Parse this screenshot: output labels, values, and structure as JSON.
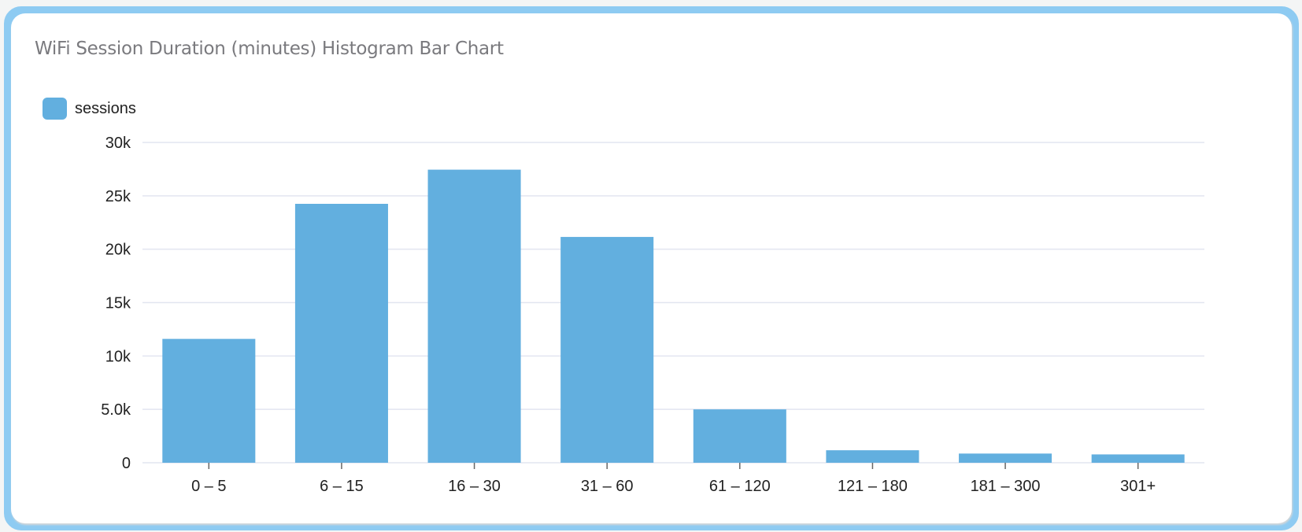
{
  "title": "WiFi Session Duration (minutes) Histogram Bar Chart",
  "colors": {
    "bar": "#62afdf",
    "grid": "#e2e5f0",
    "border": "#8ecbf2"
  },
  "chart_data": {
    "type": "bar",
    "title": "WiFi Session Duration (minutes) Histogram Bar Chart",
    "categories": [
      "0 – 5",
      "6 – 15",
      "16 – 30",
      "31 – 60",
      "61 – 120",
      "121 – 180",
      "181 – 300",
      "301+"
    ],
    "series": [
      {
        "name": "sessions",
        "values": [
          11600,
          24250,
          27450,
          21150,
          5000,
          1170,
          860,
          780
        ]
      }
    ],
    "ylim": [
      0,
      30000
    ],
    "yticks": [
      0,
      5000,
      10000,
      15000,
      20000,
      25000,
      30000
    ],
    "ytick_labels": [
      "0",
      "5.0k",
      "10k",
      "15k",
      "20k",
      "25k",
      "30k"
    ],
    "grid": true,
    "legend": "top-left",
    "xlabel": "",
    "ylabel": ""
  }
}
